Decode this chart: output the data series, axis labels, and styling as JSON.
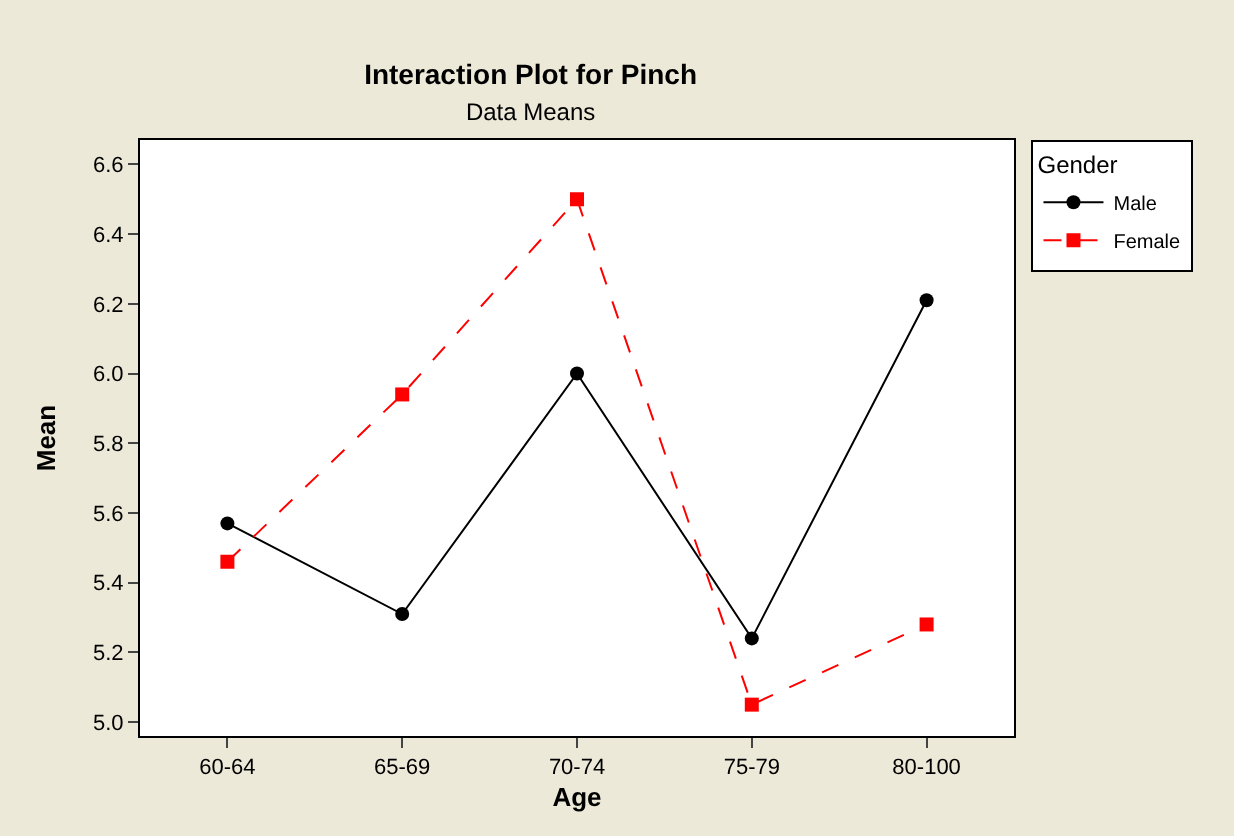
{
  "chart_data": {
    "type": "line",
    "title": "Interaction Plot for Pinch",
    "subtitle": "Data Means",
    "xlabel": "Age",
    "ylabel": "Mean",
    "legend_title": "Gender",
    "categories": [
      "60-64",
      "65-69",
      "70-74",
      "75-79",
      "80-100"
    ],
    "series": [
      {
        "name": "Male",
        "color": "#000000",
        "values": [
          5.57,
          5.31,
          6.0,
          5.24,
          6.21
        ],
        "marker": "circle",
        "line_style": "solid"
      },
      {
        "name": "Female",
        "color": "#ff0000",
        "values": [
          5.46,
          5.94,
          6.5,
          5.05,
          5.28
        ],
        "marker": "square",
        "line_style": "dashed"
      }
    ],
    "ylim": [
      4.96,
      6.67
    ],
    "yticks": [
      {
        "value": 5,
        "label": "5.0"
      },
      5.2,
      5.4,
      5.6,
      5.8,
      {
        "value": 6,
        "label": "6.0"
      },
      6.2,
      6.4,
      6.6
    ],
    "legend": "top right"
  }
}
